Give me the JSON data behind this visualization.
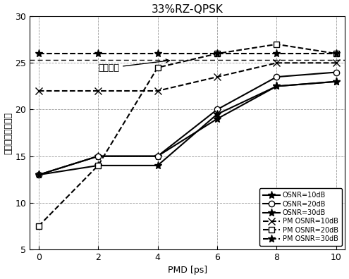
{
  "title": "33%RZ-QPSK",
  "xlabel": "PMD [ps]",
  "ylabel": "最大値横坐標位置",
  "x": [
    0,
    2,
    4,
    6,
    8,
    10
  ],
  "ylim": [
    5,
    30
  ],
  "yticks": [
    5,
    10,
    15,
    20,
    25,
    30
  ],
  "xticks": [
    0,
    2,
    4,
    6,
    8,
    10
  ],
  "threshold_y": 25.3,
  "annotation_text": "判决閾値",
  "series": [
    {
      "label": "OSNR=10dB",
      "y": [
        13.0,
        15.0,
        15.0,
        19.0,
        22.5,
        23.0
      ],
      "dashed": false,
      "marker": "star",
      "mfc": "black"
    },
    {
      "label": "OSNR=20dB",
      "y": [
        13.0,
        15.0,
        15.0,
        20.0,
        23.5,
        24.0
      ],
      "dashed": false,
      "marker": "o",
      "mfc": "white"
    },
    {
      "label": "OSNR=30dB",
      "y": [
        13.0,
        14.0,
        14.0,
        19.5,
        22.5,
        23.0
      ],
      "dashed": false,
      "marker": "filled_star",
      "mfc": "black"
    },
    {
      "label": "PM OSNR=10dB",
      "y": [
        22.0,
        22.0,
        22.0,
        23.5,
        25.0,
        25.0
      ],
      "dashed": true,
      "marker": "x",
      "mfc": "black"
    },
    {
      "label": "PM OSNR=20dB",
      "y": [
        7.5,
        14.0,
        24.5,
        26.0,
        27.0,
        26.0
      ],
      "dashed": true,
      "marker": "sq",
      "mfc": "white"
    },
    {
      "label": "PM OSNR=30dB",
      "y": [
        26.0,
        26.0,
        26.0,
        26.0,
        26.0,
        26.0
      ],
      "dashed": true,
      "marker": "filled_star",
      "mfc": "black"
    }
  ]
}
